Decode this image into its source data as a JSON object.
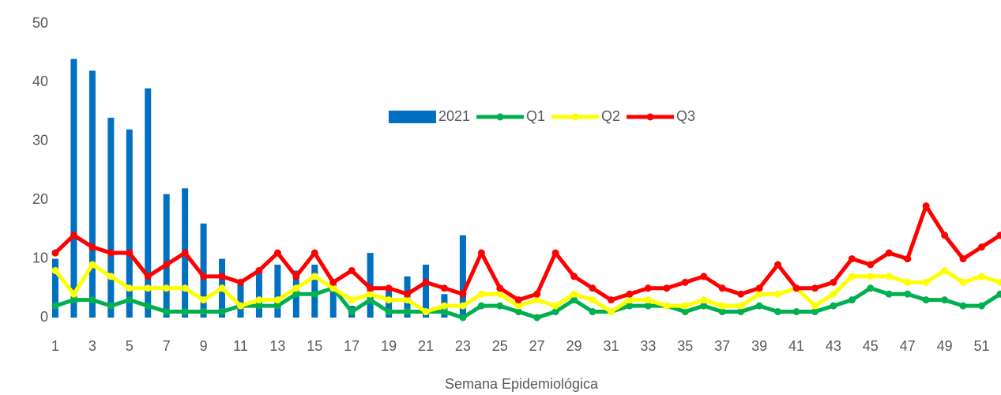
{
  "chart_data": {
    "type": "combo",
    "x_label": "Semana Epidemiológica",
    "categories": [
      "1",
      null,
      "3",
      null,
      "5",
      null,
      "7",
      null,
      "9",
      null,
      "11",
      null,
      "13",
      null,
      "15",
      null,
      "17",
      null,
      "19",
      null,
      "21",
      null,
      "23",
      null,
      "25",
      null,
      "27",
      null,
      "29",
      null,
      "31",
      null,
      "33",
      null,
      "35",
      null,
      "37",
      null,
      "39",
      null,
      "41",
      null,
      "43",
      null,
      "45",
      null,
      "47",
      null,
      "49",
      null,
      "51",
      null
    ],
    "ylim": [
      0,
      50
    ],
    "yticks": [
      0,
      10,
      20,
      30,
      40,
      50
    ],
    "grid": false,
    "legend": "center",
    "series": [
      {
        "name": "2021",
        "type": "bar",
        "color": "#0070c0",
        "values": [
          10,
          44,
          42,
          34,
          32,
          39,
          21,
          22,
          16,
          10,
          6,
          8,
          9,
          8,
          9,
          6,
          2,
          11,
          5,
          7,
          9,
          4,
          14,
          null,
          null,
          null,
          null,
          null,
          null,
          null,
          null,
          null,
          null,
          null,
          null,
          null,
          null,
          null,
          null,
          null,
          null,
          null,
          null,
          null,
          null,
          null,
          null,
          null,
          null,
          null,
          null,
          null
        ]
      },
      {
        "name": "Q1",
        "type": "line",
        "color": "#00b050",
        "values": [
          2,
          3,
          3,
          2,
          3,
          2,
          1,
          1,
          1,
          1,
          2,
          2,
          2,
          4,
          4,
          5,
          1,
          3,
          1,
          1,
          1,
          1,
          0,
          2,
          2,
          1,
          0,
          1,
          3,
          1,
          1,
          2,
          2,
          2,
          1,
          2,
          1,
          1,
          2,
          1,
          1,
          1,
          2,
          3,
          5,
          4,
          4,
          3,
          3,
          2,
          2,
          4
        ]
      },
      {
        "name": "Q2",
        "type": "line",
        "color": "#ffff00",
        "values": [
          8,
          4,
          9,
          7,
          5,
          5,
          5,
          5,
          3,
          5,
          2,
          3,
          3,
          5,
          7,
          5,
          3,
          4,
          3,
          3,
          1,
          2,
          2,
          4,
          4,
          2,
          3,
          2,
          4,
          3,
          1,
          3,
          3,
          2,
          2,
          3,
          2,
          2,
          4,
          4,
          5,
          2,
          4,
          7,
          7,
          7,
          6,
          6,
          8,
          6,
          7,
          6
        ]
      },
      {
        "name": "Q3",
        "type": "line",
        "color": "#ff0000",
        "values": [
          11,
          14,
          12,
          11,
          11,
          7,
          9,
          11,
          7,
          7,
          6,
          8,
          11,
          7,
          11,
          6,
          8,
          5,
          5,
          4,
          6,
          5,
          4,
          11,
          5,
          3,
          4,
          11,
          7,
          5,
          3,
          4,
          5,
          5,
          6,
          7,
          5,
          4,
          5,
          9,
          5,
          5,
          6,
          10,
          9,
          11,
          10,
          19,
          14,
          10,
          12,
          14
        ]
      }
    ]
  }
}
